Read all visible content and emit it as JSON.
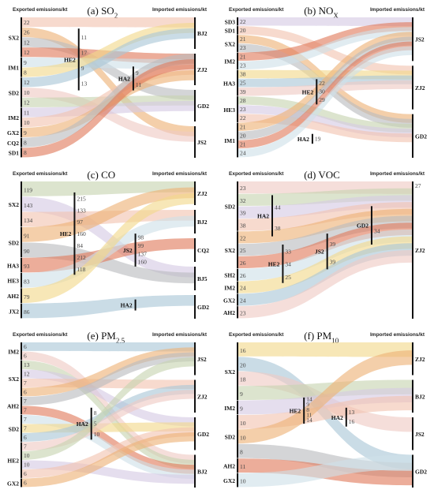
{
  "panels": [
    {
      "title": "(a) SO",
      "sub": "2",
      "exported": "Exported emissions/kt",
      "imported": "Imported emissions/kt",
      "left": [
        {
          "name": "SX2",
          "values": [
            "22",
            "26",
            "12",
            "12"
          ]
        },
        {
          "name": "IM1",
          "values": [
            "9",
            "8"
          ]
        },
        {
          "name": "SD2",
          "values": [
            "12",
            "10",
            "12"
          ]
        },
        {
          "name": "IM2",
          "values": [
            "11",
            "10"
          ]
        },
        {
          "name": "GX2",
          "values": [
            "9"
          ]
        },
        {
          "name": "CQ2",
          "values": [
            "8"
          ]
        },
        {
          "name": "SD1",
          "values": [
            "8"
          ]
        }
      ],
      "mid": [
        {
          "name": "HE2",
          "values": [
            "11",
            "17",
            "9",
            "13"
          ]
        },
        {
          "name": "HA2",
          "values": [
            "9",
            "11"
          ]
        }
      ],
      "right": [
        {
          "name": "BJ2"
        },
        {
          "name": "ZJ2"
        },
        {
          "name": "GD2"
        },
        {
          "name": "JS2"
        }
      ]
    },
    {
      "title": "(b) NO",
      "sub": "X",
      "exported": "Exported emissions/kt",
      "imported": "Imported emissions/kt",
      "left": [
        {
          "name": "SD3",
          "values": [
            "22"
          ]
        },
        {
          "name": "SD1",
          "values": [
            "20"
          ]
        },
        {
          "name": "SX2",
          "values": [
            "21",
            "23"
          ]
        },
        {
          "name": "IM2",
          "values": [
            "21",
            "23"
          ]
        },
        {
          "name": "HA3",
          "values": [
            "38",
            "25",
            "39"
          ]
        },
        {
          "name": "HE3",
          "values": [
            "28",
            "23",
            "22"
          ]
        },
        {
          "name": "IM1",
          "values": [
            "21",
            "20",
            "21",
            "24"
          ]
        }
      ],
      "mid": [
        {
          "name": "HE2",
          "values": [
            "22",
            "30",
            "29"
          ]
        },
        {
          "name": "HA2",
          "values": [
            "19"
          ]
        }
      ],
      "right": [
        {
          "name": "JS2"
        },
        {
          "name": "ZJ2"
        },
        {
          "name": "GD2"
        }
      ]
    },
    {
      "title": "(c) CO",
      "sub": "",
      "exported": "Exported emissions/kt",
      "imported": "Imported emissions/kt",
      "left": [
        {
          "name": "SX2",
          "values": [
            "119",
            "143",
            "134"
          ]
        },
        {
          "name": "SD2",
          "values": [
            "91",
            "90"
          ]
        },
        {
          "name": "HA3",
          "values": [
            "93"
          ]
        },
        {
          "name": "HE3",
          "values": [
            "83"
          ]
        },
        {
          "name": "AH2",
          "values": [
            "79"
          ]
        },
        {
          "name": "JX2",
          "values": [
            "86"
          ]
        }
      ],
      "mid": [
        {
          "name": "HE2",
          "values": [
            "215",
            "133",
            "97",
            "160",
            "84",
            "212",
            "118"
          ]
        },
        {
          "name": "JS2",
          "values": [
            "98",
            "99",
            "137",
            "160"
          ]
        },
        {
          "name": "HA2",
          "values": []
        }
      ],
      "right": [
        {
          "name": "ZJ2"
        },
        {
          "name": "BJ2"
        },
        {
          "name": "CQ2"
        },
        {
          "name": "BJ5"
        },
        {
          "name": "GD2"
        }
      ]
    },
    {
      "title": "(d) VOC",
      "sub": "",
      "exported": "Exported emissions/kt",
      "imported": "Imported emissions/kt",
      "left": [
        {
          "name": "SD2",
          "values": [
            "23",
            "32",
            "39",
            "38"
          ]
        },
        {
          "name": "SX2",
          "values": [
            "22",
            "25",
            "26"
          ]
        },
        {
          "name": "SH2",
          "values": [
            "26"
          ]
        },
        {
          "name": "IM2",
          "values": [
            "24"
          ]
        },
        {
          "name": "GX2",
          "values": [
            "24"
          ]
        },
        {
          "name": "AH2",
          "values": [
            "23"
          ]
        }
      ],
      "mid": [
        {
          "name": "HA2",
          "values": [
            "44",
            "38"
          ]
        },
        {
          "name": "HE2",
          "values": [
            "33",
            "34",
            "25"
          ]
        },
        {
          "name": "JS2",
          "values": [
            "39",
            "39"
          ]
        },
        {
          "name": "GD2",
          "values": [
            "34"
          ]
        }
      ],
      "right": [
        {
          "name": "ZJ2",
          "values": [
            "27"
          ]
        }
      ]
    },
    {
      "title": "(e) PM",
      "sub": "2.5",
      "exported": "Exported emissions/kt",
      "imported": "Imported emissions/kt",
      "left": [
        {
          "name": "IM2",
          "values": [
            "6",
            "6"
          ]
        },
        {
          "name": "SX2",
          "values": [
            "13",
            "12",
            "7",
            "6"
          ]
        },
        {
          "name": "AH2",
          "values": [
            "7",
            "7"
          ]
        },
        {
          "name": "SD2",
          "values": [
            "7",
            "7",
            "6"
          ]
        },
        {
          "name": "HE2",
          "values": [
            "7",
            "10",
            "10",
            "6"
          ]
        },
        {
          "name": "GX2",
          "values": [
            "6"
          ]
        }
      ],
      "mid": [
        {
          "name": "HA2",
          "values": [
            "8",
            "5",
            "10"
          ]
        }
      ],
      "right": [
        {
          "name": "JS2"
        },
        {
          "name": "ZJ2"
        },
        {
          "name": "GD2"
        },
        {
          "name": "BJ2"
        }
      ]
    },
    {
      "title": "(f) PM",
      "sub": "10",
      "exported": "Exported emissions/kt",
      "imported": "Imported emissions/kt",
      "left": [
        {
          "name": "SX2",
          "values": [
            "16",
            "20",
            "18",
            "9"
          ]
        },
        {
          "name": "IM2",
          "values": [
            "9"
          ]
        },
        {
          "name": "SD2",
          "values": [
            "10",
            "10",
            "8"
          ]
        },
        {
          "name": "AH2",
          "values": [
            "11"
          ]
        },
        {
          "name": "GX2",
          "values": [
            "10"
          ]
        }
      ],
      "mid": [
        {
          "name": "HE2",
          "values": [
            "14",
            "9",
            "8",
            "11",
            "14"
          ]
        },
        {
          "name": "HA2",
          "values": [
            "13",
            "16"
          ]
        }
      ],
      "right": [
        {
          "name": "ZJ2"
        },
        {
          "name": "BJ2"
        },
        {
          "name": "JS2"
        },
        {
          "name": "GD2"
        }
      ]
    }
  ],
  "colors": {
    "salmon": "#f2c4b0",
    "red": "#e07a5c",
    "blue": "#a9c7d6",
    "lavender": "#d5c9e3",
    "gray": "#b9bcbf",
    "yellow": "#f2d98a",
    "green": "#c6d3b0",
    "orange": "#eeb276",
    "lightblue": "#cfe0e9",
    "pink": "#efc9c3"
  }
}
